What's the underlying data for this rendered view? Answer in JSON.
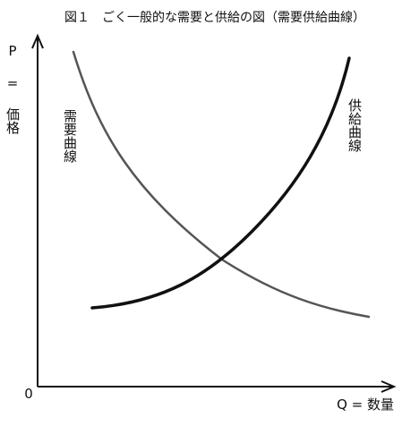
{
  "header": {
    "title": "図１　ごく一般的な需要と供給の図（需要供給曲線）"
  },
  "axes": {
    "y_label": "P = 価格",
    "x_label": "Q = 数量",
    "origin": "0"
  },
  "curves": {
    "demand_label": "需要曲線",
    "supply_label": "供給曲線"
  }
}
